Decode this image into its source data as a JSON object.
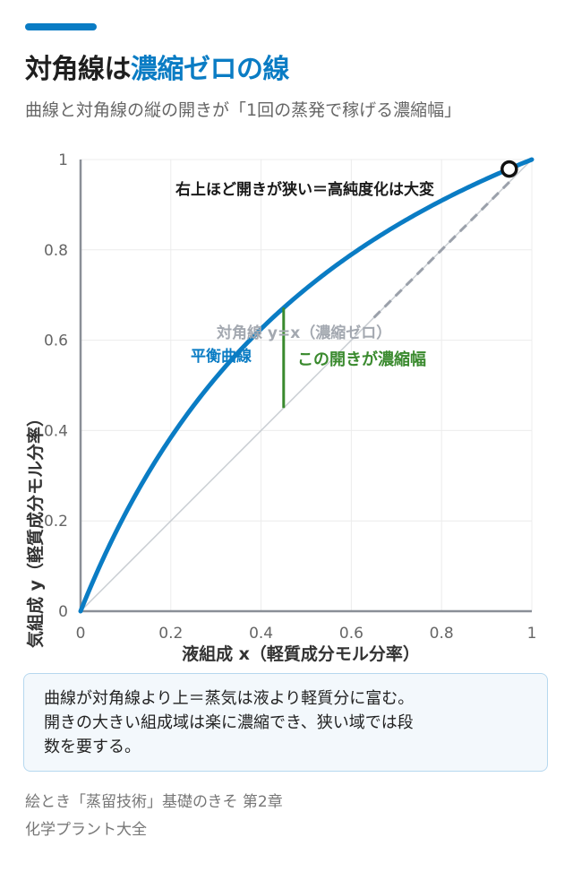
{
  "header": {
    "title_prefix": "対角線は",
    "title_highlight": "濃縮ゼロの線",
    "subtitle": "曲線と対角線の縦の開きが「1回の蒸発で稼げる濃縮幅」"
  },
  "colors": {
    "accent": "#0a7cc4",
    "equilibrium_curve": "#0a7cc4",
    "diagonal": "#c8cdd2",
    "dashed_extension": "#9aa0aa",
    "gap_marker": "#3a8a2e",
    "axis": "#8a8f97",
    "grid": "#ececec"
  },
  "chart_data": {
    "type": "line",
    "xlabel": "液組成 x（軽質成分モル分率）",
    "ylabel": "気組成 y（軽質成分モル分率）",
    "xlim": [
      0,
      1
    ],
    "ylim": [
      0,
      1
    ],
    "x_ticks": [
      "0",
      "0.2",
      "0.4",
      "0.6",
      "0.8",
      "1"
    ],
    "y_ticks": [
      "0",
      "0.2",
      "0.4",
      "0.6",
      "0.8",
      "1"
    ],
    "grid": true,
    "series": [
      {
        "name": "平衡曲線",
        "relative_volatility": 2.5,
        "x": [
          0,
          0.05,
          0.1,
          0.15,
          0.2,
          0.25,
          0.3,
          0.35,
          0.4,
          0.45,
          0.5,
          0.55,
          0.6,
          0.65,
          0.7,
          0.75,
          0.8,
          0.85,
          0.9,
          0.95,
          1.0
        ],
        "y": [
          0,
          0.116,
          0.217,
          0.306,
          0.385,
          0.455,
          0.517,
          0.574,
          0.625,
          0.672,
          0.714,
          0.753,
          0.789,
          0.823,
          0.854,
          0.882,
          0.909,
          0.934,
          0.957,
          0.979,
          1.0
        ]
      },
      {
        "name": "対角線 y=x（濃縮ゼロ）",
        "x": [
          0,
          1
        ],
        "y": [
          0,
          1
        ]
      }
    ],
    "gap_marker": {
      "x": 0.45,
      "y_from": 0.45,
      "y_to": 0.672
    },
    "end_point": {
      "x": 0.95,
      "y": 0.979
    },
    "annotations": {
      "top": "右上ほど開きが狭い＝高純度化は大変",
      "diagonal": "対角線 y=x（濃縮ゼロ）",
      "curve": "平衡曲線",
      "gap": "この開きが濃縮幅"
    }
  },
  "note": {
    "line1": "曲線が対角線より上＝蒸気は液より軽質分に富む。",
    "line2": "開きの大きい組成域は楽に濃縮でき、狭い域では段",
    "line3": "数を要する。"
  },
  "footer": {
    "line1": "絵とき「蒸留技術」基礎のきそ 第2章",
    "line2": "化学プラント大全"
  }
}
